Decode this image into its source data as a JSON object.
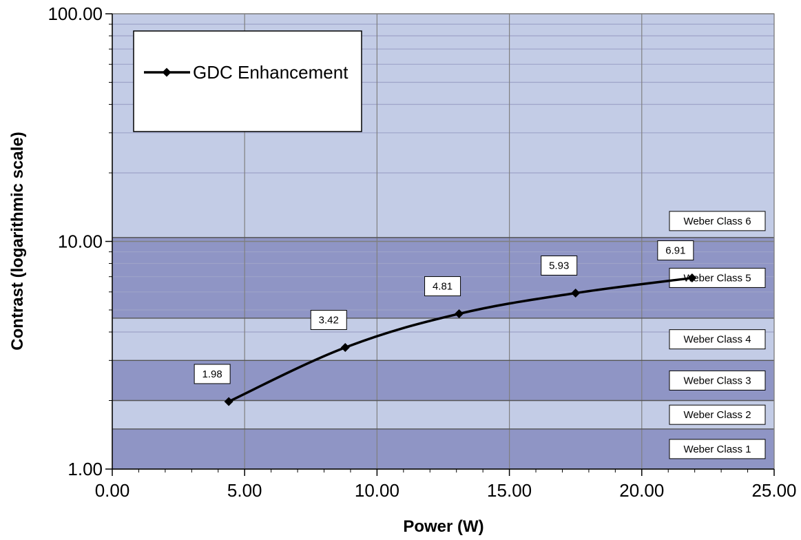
{
  "chart_data": {
    "type": "line",
    "xlabel": "Power (W)",
    "ylabel": "Contrast (logarithmic scale)",
    "xlim": [
      0,
      25
    ],
    "ylim": [
      1,
      100
    ],
    "yscale": "log",
    "grid": true,
    "legend_position": "top-left",
    "x_ticks": [
      "0.00",
      "5.00",
      "10.00",
      "15.00",
      "20.00",
      "25.00"
    ],
    "y_ticks": [
      "1.00",
      "10.00",
      "100.00"
    ],
    "series": [
      {
        "name": "GDC Enhancement",
        "color": "#000000",
        "marker": "diamond",
        "x": [
          4.4,
          8.8,
          13.1,
          17.5,
          21.9
        ],
        "y": [
          1.98,
          3.42,
          4.81,
          5.93,
          6.91
        ],
        "labels": [
          "1.98",
          "3.42",
          "4.81",
          "5.93",
          "6.91"
        ]
      }
    ],
    "bands": [
      {
        "label": "Weber Class 1",
        "from": 1.0,
        "to": 1.5,
        "color": "#8f95c5"
      },
      {
        "label": "Weber Class 2",
        "from": 1.5,
        "to": 2.0,
        "color": "#c3cce6"
      },
      {
        "label": "Weber Class 3",
        "from": 2.0,
        "to": 3.0,
        "color": "#8f95c5"
      },
      {
        "label": "Weber Class 4",
        "from": 3.0,
        "to": 4.6,
        "color": "#c3cce6"
      },
      {
        "label": "Weber Class 5",
        "from": 4.6,
        "to": 10.4,
        "color": "#8f95c5"
      },
      {
        "label": "Weber Class 6",
        "from": 10.4,
        "to": 100.0,
        "color": "#c3cce6"
      }
    ]
  }
}
